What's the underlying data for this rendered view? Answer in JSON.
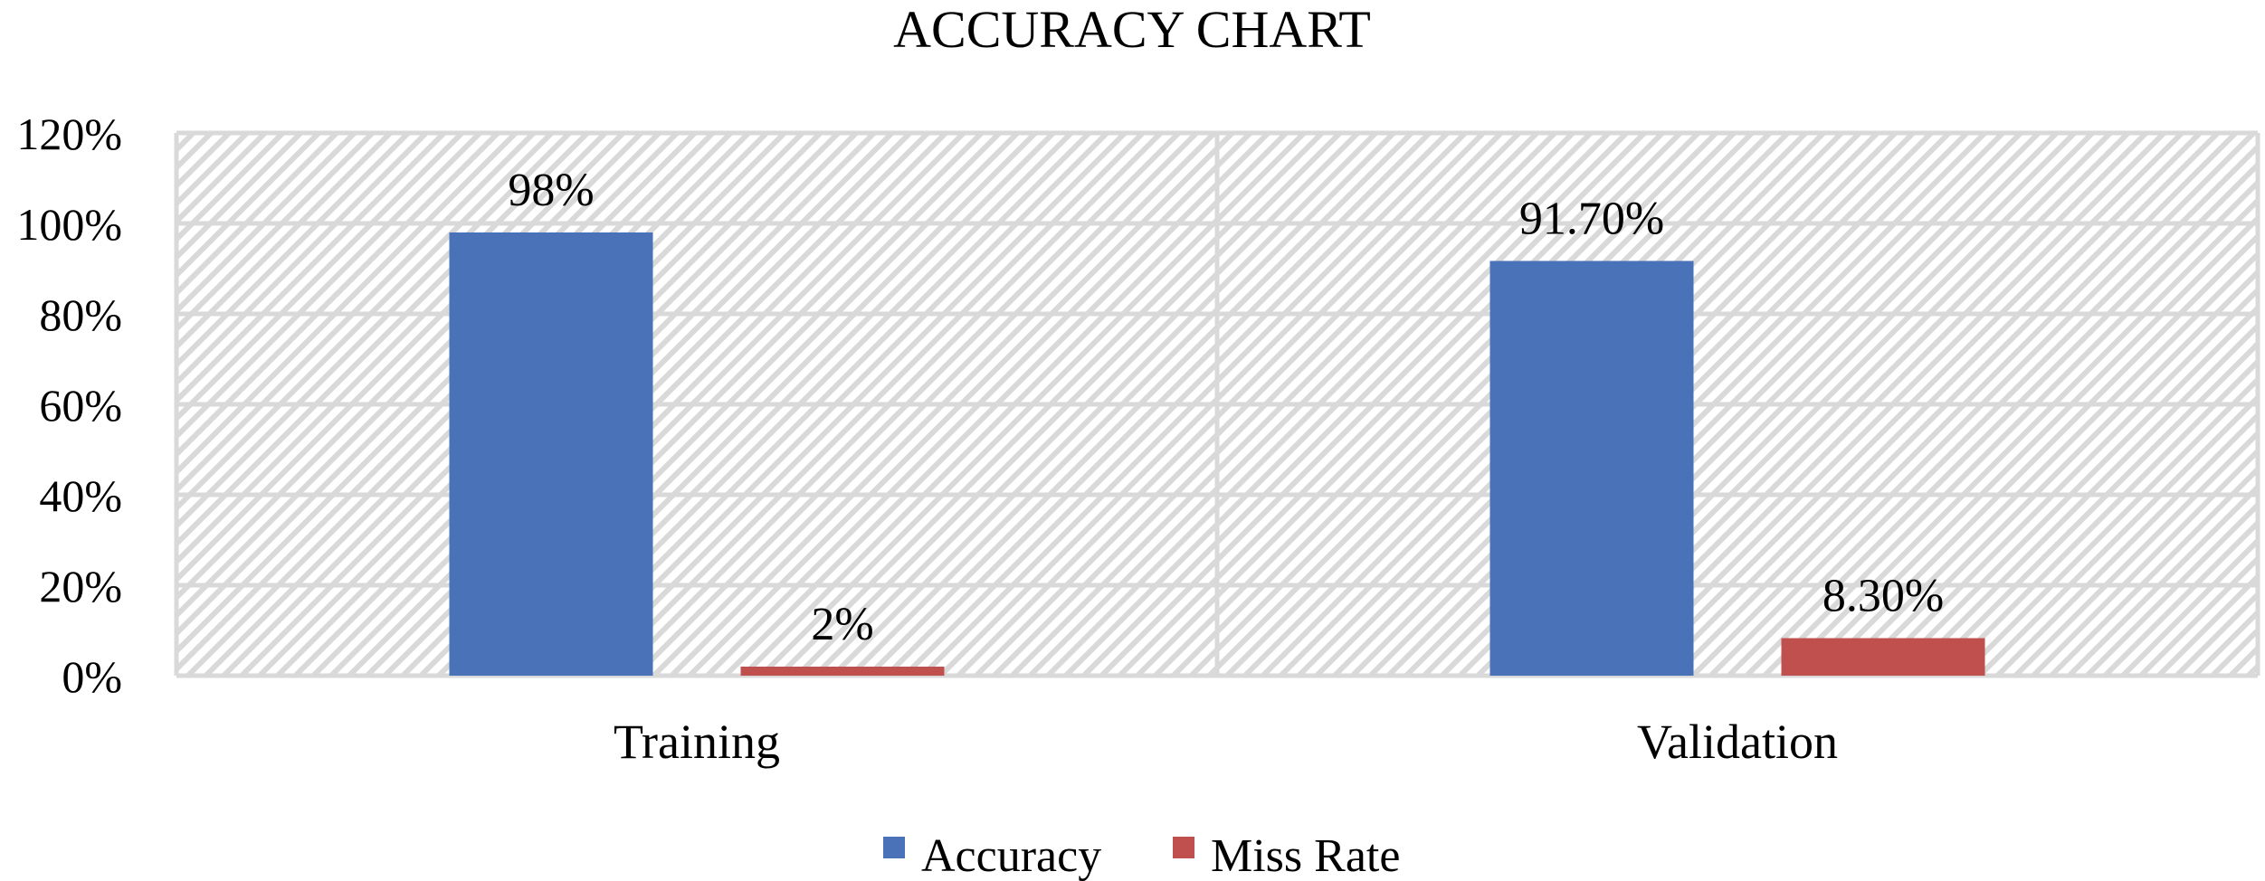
{
  "chart_data": {
    "type": "bar",
    "title": "ACCURACY CHART",
    "categories": [
      "Training",
      "Validation"
    ],
    "series": [
      {
        "name": "Accuracy",
        "color": "#4A72B8",
        "values": [
          98,
          91.7
        ],
        "labels": [
          "98%",
          "91.70%"
        ]
      },
      {
        "name": "Miss Rate",
        "color": "#C0504D",
        "values": [
          2,
          8.3
        ],
        "labels": [
          "2%",
          "8.30%"
        ]
      }
    ],
    "ylim": [
      0,
      120
    ],
    "yticks": [
      0,
      20,
      40,
      60,
      80,
      100,
      120
    ],
    "ytick_labels": [
      "0%",
      "20%",
      "40%",
      "60%",
      "80%",
      "100%",
      "120%"
    ],
    "xlabel": "",
    "ylabel": "",
    "grid": true,
    "legend_position": "bottom-center"
  }
}
